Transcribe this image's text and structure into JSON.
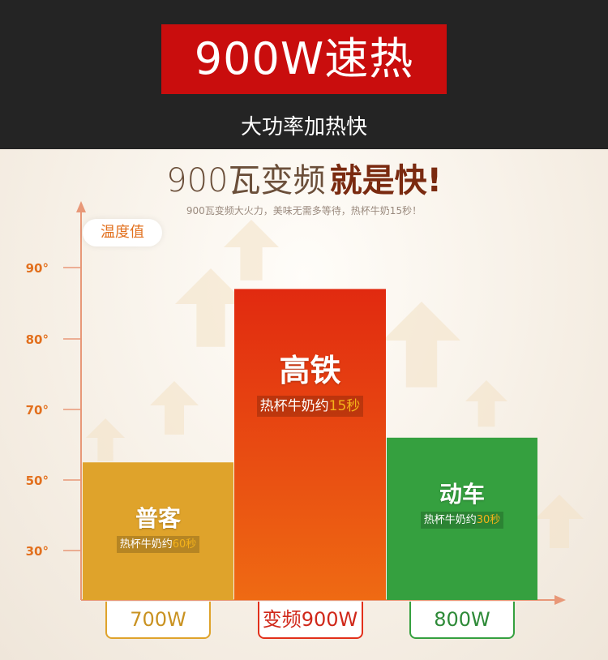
{
  "header": {
    "headline": "900W速热",
    "subheadline": "大功率加热快"
  },
  "slogan": {
    "light": "900瓦变频",
    "bold": "就是快!",
    "sub": "900瓦变频大火力，美味无需多等待，热杯牛奶15秒！"
  },
  "colors": {
    "headline_bg": "#c90d0d",
    "axis": "#e89878",
    "bar_1": "#dfa32b",
    "bar_2": "#e23a12",
    "bar_3": "#35a03f"
  },
  "chart_data": {
    "type": "bar",
    "ylabel": "温度值",
    "y_ticks": [
      {
        "value": 30,
        "label": "30°"
      },
      {
        "value": 50,
        "label": "50°"
      },
      {
        "value": 70,
        "label": "70°"
      },
      {
        "value": 80,
        "label": "80°"
      },
      {
        "value": 90,
        "label": "90°"
      }
    ],
    "categories": [
      "700W",
      "变频900W",
      "800W"
    ],
    "series": [
      {
        "values": [
          55,
          87,
          62
        ],
        "names": [
          "普客",
          "高铁",
          "动车"
        ],
        "notes": [
          {
            "prefix": "热杯牛奶约",
            "highlight": "60秒"
          },
          {
            "prefix": "热杯牛奶约",
            "highlight": "15秒"
          },
          {
            "prefix": "热杯牛奶约",
            "highlight": "30秒"
          }
        ]
      }
    ]
  }
}
